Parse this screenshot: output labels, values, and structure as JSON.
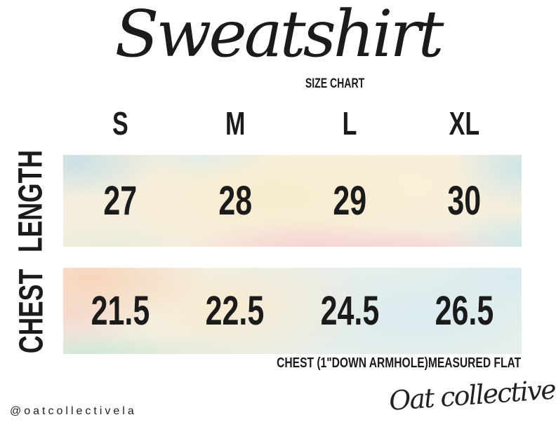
{
  "title": {
    "text": "Sweatshirt",
    "subtitle": "SIZE CHART"
  },
  "size_chart": {
    "columns": [
      "S",
      "M",
      "L",
      "XL"
    ],
    "rows": [
      {
        "label": "LENGTH",
        "values": [
          "27",
          "28",
          "29",
          "30"
        ]
      },
      {
        "label": "CHEST",
        "values": [
          "21.5",
          "22.5",
          "24.5",
          "26.5"
        ]
      }
    ],
    "footnote": "CHEST (1\"DOWN ARMHOLE)MEASURED FLAT"
  },
  "footer": {
    "instagram_handle": "@oatcollectivela",
    "brand_signature": "Oat collective"
  },
  "chart_data": {
    "type": "table",
    "title": "Sweatshirt",
    "subtitle": "SIZE CHART",
    "columns": [
      "S",
      "M",
      "L",
      "XL"
    ],
    "rows": [
      {
        "label": "LENGTH",
        "values": [
          27,
          28,
          29,
          30
        ]
      },
      {
        "label": "CHEST",
        "values": [
          21.5,
          22.5,
          24.5,
          26.5
        ]
      }
    ],
    "note": "CHEST (1\"DOWN ARMHOLE)MEASURED FLAT"
  },
  "colors": {
    "ink": "#1b1b1b",
    "watercolor_cream": "#f5eedd",
    "watercolor_peach": "#f9cfb2",
    "watercolor_pink": "#f6c6cf",
    "watercolor_blue": "#cfe7ee",
    "watercolor_mint": "#c9e3cf"
  }
}
